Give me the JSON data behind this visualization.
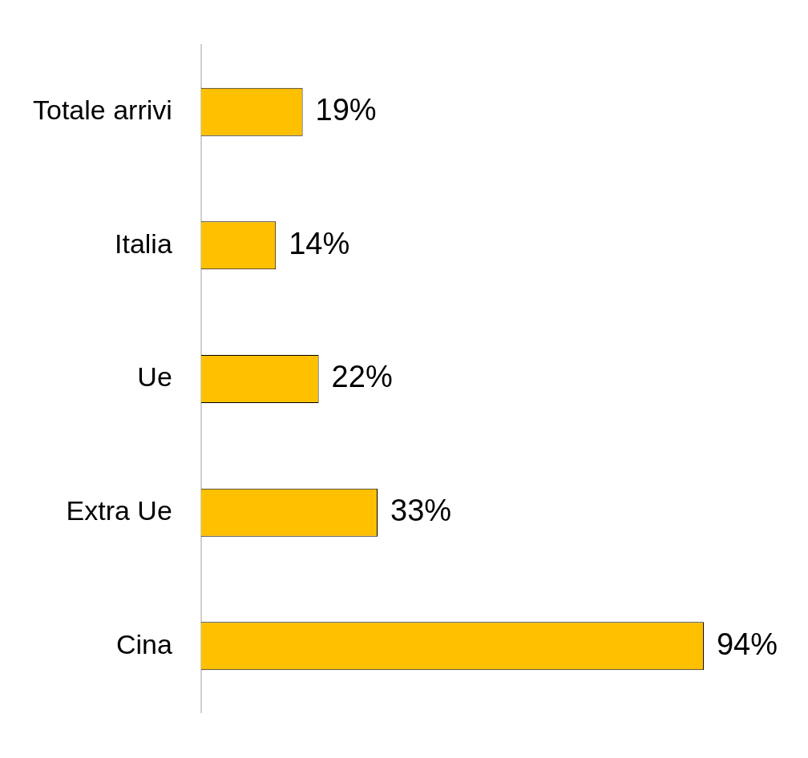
{
  "chart_data": {
    "type": "bar",
    "orientation": "horizontal",
    "categories": [
      "Totale arrivi",
      "Italia",
      "Ue",
      "Extra Ue",
      "Cina"
    ],
    "values": [
      19,
      14,
      22,
      33,
      94
    ],
    "value_labels": [
      "19%",
      "14%",
      "22%",
      "33%",
      "94%"
    ],
    "color": "#ffc000",
    "legend": false
  }
}
